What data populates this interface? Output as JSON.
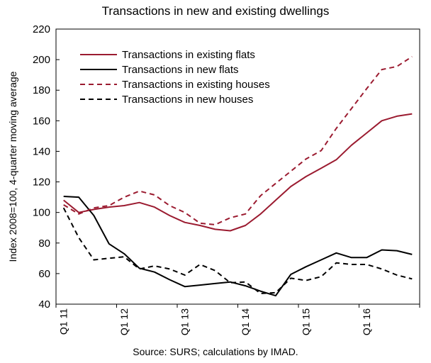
{
  "chart_data": {
    "type": "line",
    "title": "Transactions in new and existing dwellings",
    "ylabel": "Index 2008=100, 4-quarter moving average",
    "xlabel": "",
    "source": "Source: SURS; calculations by IMAD.",
    "ylim": [
      40,
      220
    ],
    "yticks": [
      40,
      60,
      80,
      100,
      120,
      140,
      160,
      180,
      200,
      220
    ],
    "grid": false,
    "legend_position": "top-left",
    "x": [
      "Q1 11",
      "Q2 11",
      "Q3 11",
      "Q4 11",
      "Q1 12",
      "Q2 12",
      "Q3 12",
      "Q4 12",
      "Q1 13",
      "Q2 13",
      "Q3 13",
      "Q4 13",
      "Q1 14",
      "Q2 14",
      "Q3 14",
      "Q4 14",
      "Q1 15",
      "Q2 15",
      "Q3 15",
      "Q4 15",
      "Q1 16",
      "Q2 16",
      "Q3 16",
      "Q4 16"
    ],
    "xtick_labels": [
      "Q1 11",
      "Q1 12",
      "Q1 13",
      "Q1 14",
      "Q1 15",
      "Q1 16"
    ],
    "series": [
      {
        "name": "Transactions in existing flats",
        "color": "#9b1b30",
        "dash": "solid",
        "values": [
          108,
          100,
          102,
          103.5,
          104.5,
          106.5,
          103.5,
          98,
          93.5,
          91.5,
          89,
          88,
          91.5,
          99,
          108,
          117,
          123.5,
          129,
          134.5,
          144,
          152,
          160,
          163,
          164.5
        ]
      },
      {
        "name": "Transactions in new flats",
        "color": "#000000",
        "dash": "solid",
        "values": [
          110.5,
          110,
          98,
          79.5,
          73,
          63.5,
          61,
          56,
          51.5,
          52.5,
          53.5,
          54.5,
          52,
          48.5,
          45.5,
          59.5,
          64.5,
          69,
          73.5,
          70.5,
          70.5,
          75.5,
          75,
          72.5
        ]
      },
      {
        "name": "Transactions in existing houses",
        "color": "#9b1b30",
        "dash": "dashed",
        "values": [
          105,
          99,
          103,
          104.5,
          110,
          114,
          111.5,
          104.5,
          100,
          93,
          92,
          96.5,
          99,
          111,
          119,
          127,
          135,
          140.5,
          155,
          168,
          181,
          193.5,
          195.5,
          202
        ]
      },
      {
        "name": "Transactions in new houses",
        "color": "#000000",
        "dash": "dashed",
        "values": [
          103,
          83.5,
          69,
          70,
          71,
          63,
          65,
          63,
          59,
          66,
          62,
          54,
          54.5,
          47,
          47.5,
          57,
          55.5,
          58,
          67,
          66,
          66,
          63,
          59,
          56.5
        ]
      }
    ]
  }
}
